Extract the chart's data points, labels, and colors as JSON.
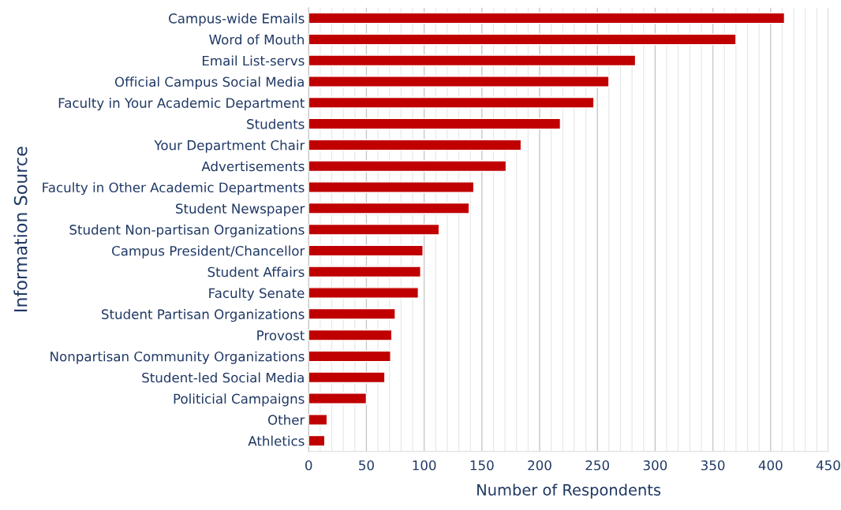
{
  "chart_data": {
    "type": "bar",
    "orientation": "horizontal",
    "xlabel": "Number of Respondents",
    "ylabel": "Information Source",
    "categories": [
      "Campus-wide Emails",
      "Word of Mouth",
      "Email List-servs",
      "Official Campus Social Media",
      "Faculty in Your Academic Department",
      "Students",
      "Your Department Chair",
      "Advertisements",
      "Faculty in Other Academic Departments",
      "Student Newspaper",
      "Student Non-partisan Organizations",
      "Campus President/Chancellor",
      "Student Affairs",
      "Faculty Senate",
      "Student Partisan Organizations",
      "Provost",
      "Nonpartisan Community Organizations",
      "Student-led Social Media",
      "Politicial Campaigns",
      "Other",
      "Athletics"
    ],
    "values": [
      412,
      370,
      283,
      260,
      247,
      218,
      184,
      171,
      143,
      139,
      113,
      99,
      97,
      95,
      75,
      72,
      71,
      66,
      50,
      16,
      14
    ],
    "color": "#c00000",
    "xlim": [
      0,
      450
    ],
    "xticks": [
      0,
      50,
      100,
      150,
      200,
      250,
      300,
      350,
      400,
      450
    ],
    "grid": "x",
    "legend": false
  }
}
